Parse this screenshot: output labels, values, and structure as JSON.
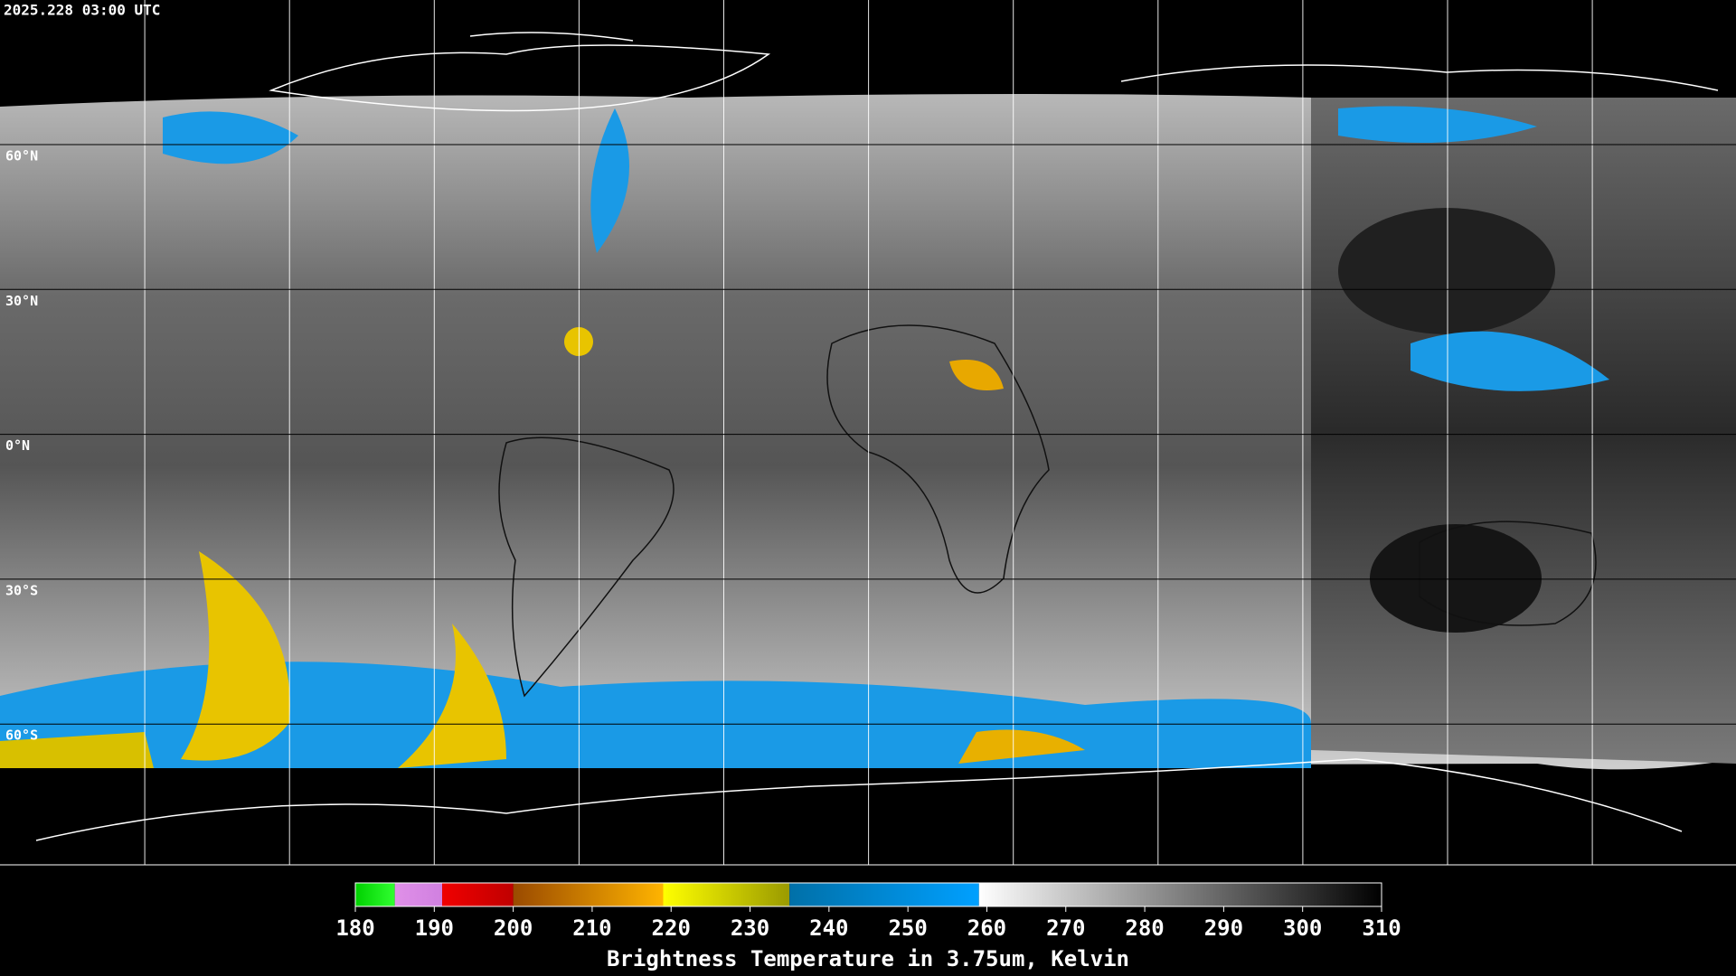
{
  "header": {
    "timestamp": "2025.228 03:00 UTC"
  },
  "map": {
    "lat_labels": [
      "60°N",
      "30°N",
      "0°N",
      "30°S",
      "60°S"
    ]
  },
  "colorbar": {
    "range": [
      180,
      310
    ],
    "ticks": [
      180,
      190,
      200,
      210,
      220,
      230,
      240,
      250,
      260,
      270,
      280,
      290,
      300,
      310
    ],
    "segments": [
      {
        "from": 180,
        "to": 185,
        "colors": [
          "#00d000",
          "#30ff30"
        ]
      },
      {
        "from": 185,
        "to": 191,
        "colors": [
          "#e090e8",
          "#d080e0"
        ]
      },
      {
        "from": 191,
        "to": 200,
        "colors": [
          "#f00000",
          "#c00000"
        ]
      },
      {
        "from": 200,
        "to": 219,
        "colors": [
          "#9a4a00",
          "#ffb400"
        ]
      },
      {
        "from": 219,
        "to": 235,
        "colors": [
          "#ffff00",
          "#9a9a00"
        ]
      },
      {
        "from": 235,
        "to": 259,
        "colors": [
          "#0070a8",
          "#00a0ff"
        ]
      },
      {
        "from": 259,
        "to": 310,
        "colors": [
          "#ffffff",
          "#000000"
        ]
      }
    ],
    "label": "Brightness Temperature in 3.75um, Kelvin"
  }
}
